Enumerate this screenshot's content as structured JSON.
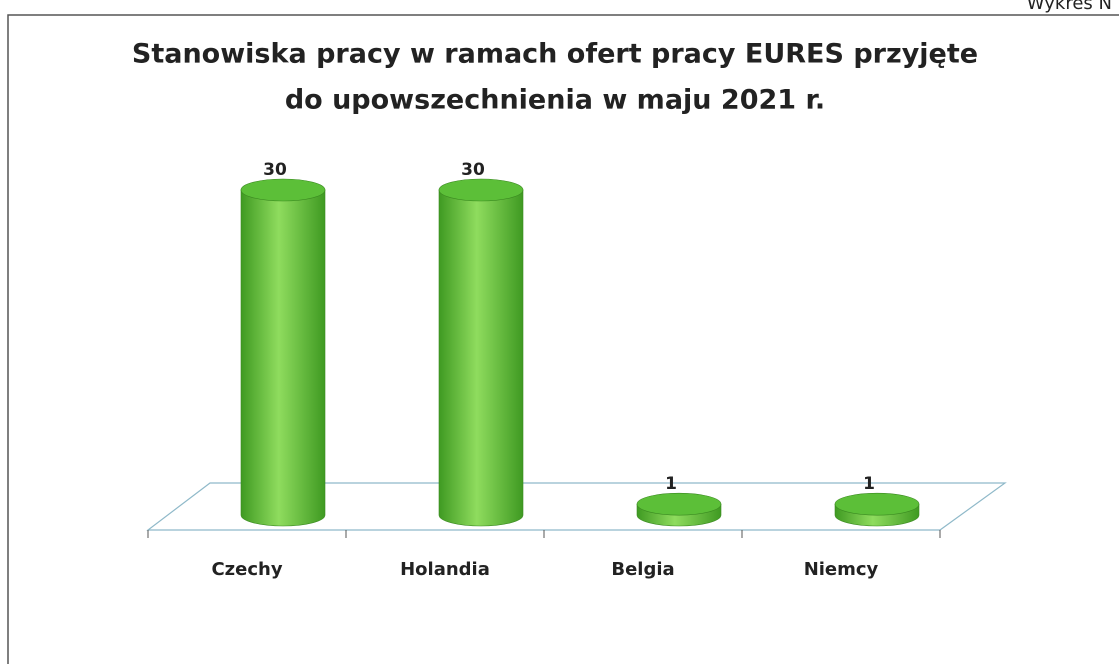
{
  "page_label": "Wykres N",
  "chart_data": {
    "type": "bar",
    "style": "cylinder",
    "title": [
      "Stanowiska pracy w ramach ofert pracy EURES przyjęte",
      "do upowszechnienia w maju 2021 r."
    ],
    "categories": [
      "Czechy",
      "Holandia",
      "Belgia",
      "Niemcy"
    ],
    "values": [
      30,
      30,
      1,
      1
    ],
    "color": "#5cbf38",
    "ylim": [
      0,
      30
    ]
  }
}
